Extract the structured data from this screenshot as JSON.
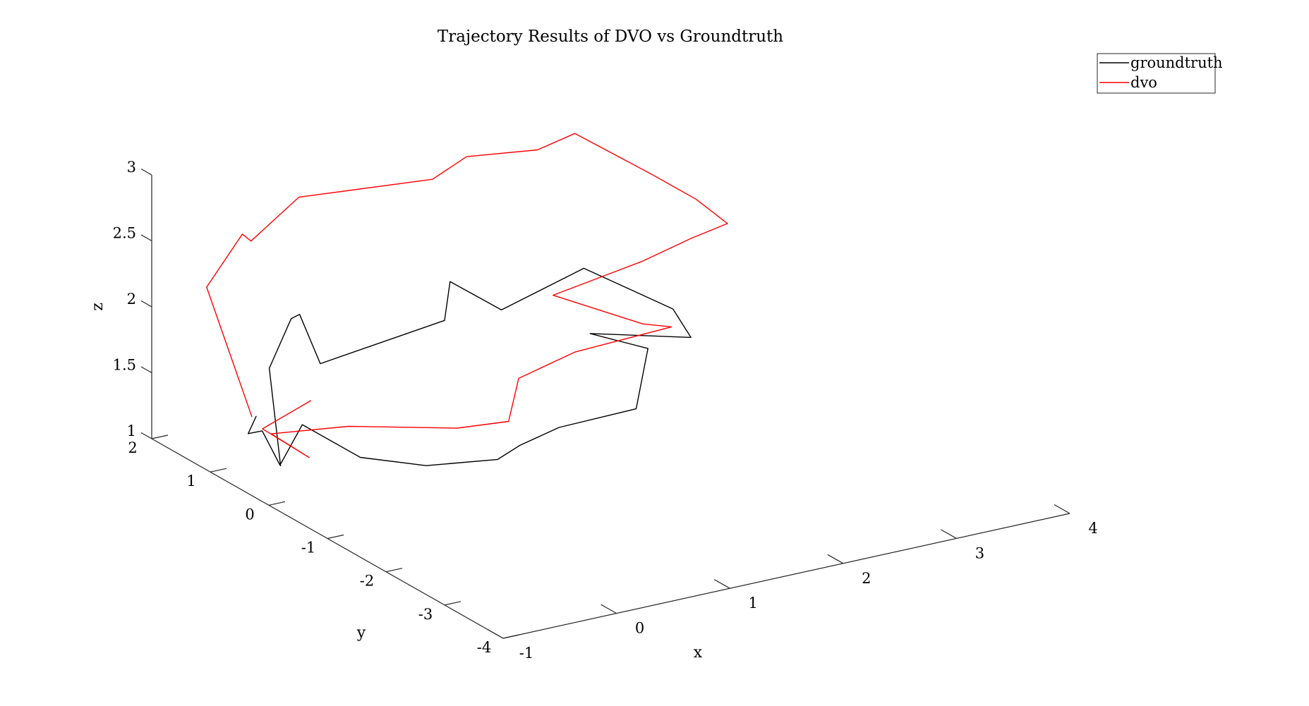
{
  "chart_data": {
    "type": "line",
    "projection": "3d",
    "title": "Trajectory Results of DVO vs Groundtruth",
    "xlabel": "x",
    "ylabel": "y",
    "zlabel": "z",
    "xlim": [
      -1,
      4
    ],
    "ylim": [
      -4,
      2
    ],
    "zlim": [
      1,
      3
    ],
    "xticks": [
      "-1",
      "0",
      "1",
      "2",
      "3",
      "4"
    ],
    "yticks": [
      "-4",
      "-3",
      "-2",
      "-1",
      "0",
      "1",
      "2"
    ],
    "zticks": [
      "1",
      "1.5",
      "2",
      "2.5",
      "3"
    ],
    "grid": false,
    "legend_position": "top-right",
    "series": [
      {
        "name": "groundtruth",
        "color": "#000000",
        "points": [
          [
            -1.0,
            -0.2,
            1.35
          ],
          [
            -0.35,
            1.25,
            1.6
          ],
          [
            0.05,
            1.65,
            1.8
          ],
          [
            0.15,
            1.7,
            1.8
          ],
          [
            0.1,
            1.25,
            1.55
          ],
          [
            1.3,
            1.45,
            1.6
          ],
          [
            1.4,
            1.55,
            1.85
          ],
          [
            1.75,
            1.35,
            1.62
          ],
          [
            2.4,
            1.2,
            1.85
          ],
          [
            2.85,
            0.55,
            1.62
          ],
          [
            2.75,
            0.05,
            1.55
          ],
          [
            2.3,
            0.9,
            1.45
          ],
          [
            2.5,
            0.3,
            1.45
          ],
          [
            1.75,
            -0.95,
            1.45
          ],
          [
            1.2,
            -0.7,
            1.35
          ],
          [
            0.75,
            -0.9,
            1.35
          ],
          [
            0.45,
            -1.1,
            1.35
          ],
          [
            0.0,
            -0.75,
            1.3
          ],
          [
            -0.4,
            -0.4,
            1.35
          ],
          [
            -0.55,
            0.3,
            1.45
          ],
          [
            -0.85,
            0.1,
            1.25
          ],
          [
            -0.8,
            0.5,
            1.4
          ],
          [
            -0.95,
            0.45,
            1.42
          ],
          [
            -0.75,
            0.7,
            1.45
          ]
        ]
      },
      {
        "name": "dvo",
        "color": "#ff0000",
        "points": [
          [
            -1.15,
            0.0,
            1.7
          ],
          [
            -0.8,
            1.45,
            2.25
          ],
          [
            -0.2,
            2.0,
            2.4
          ],
          [
            -0.15,
            1.95,
            2.35
          ],
          [
            0.35,
            2.1,
            2.55
          ],
          [
            1.4,
            1.85,
            2.55
          ],
          [
            1.65,
            1.75,
            2.7
          ],
          [
            2.25,
            1.7,
            2.65
          ],
          [
            2.45,
            1.45,
            2.8
          ],
          [
            2.85,
            0.9,
            2.55
          ],
          [
            3.0,
            0.45,
            2.45
          ],
          [
            3.15,
            0.2,
            2.3
          ],
          [
            2.75,
            0.05,
            2.3
          ],
          [
            2.55,
            0.5,
            2.05
          ],
          [
            2.05,
            1.05,
            1.75
          ],
          [
            2.3,
            0.0,
            1.75
          ],
          [
            2.45,
            -0.2,
            1.75
          ],
          [
            1.7,
            0.0,
            1.65
          ],
          [
            1.05,
            -0.3,
            1.65
          ],
          [
            0.65,
            -0.9,
            1.55
          ],
          [
            0.25,
            -0.8,
            1.55
          ],
          [
            -0.35,
            -0.1,
            1.5
          ],
          [
            -0.85,
            0.25,
            1.45
          ],
          [
            -0.8,
            -0.3,
            1.4
          ],
          [
            -0.85,
            0.4,
            1.45
          ],
          [
            -0.45,
            0.35,
            1.6
          ]
        ]
      }
    ]
  }
}
